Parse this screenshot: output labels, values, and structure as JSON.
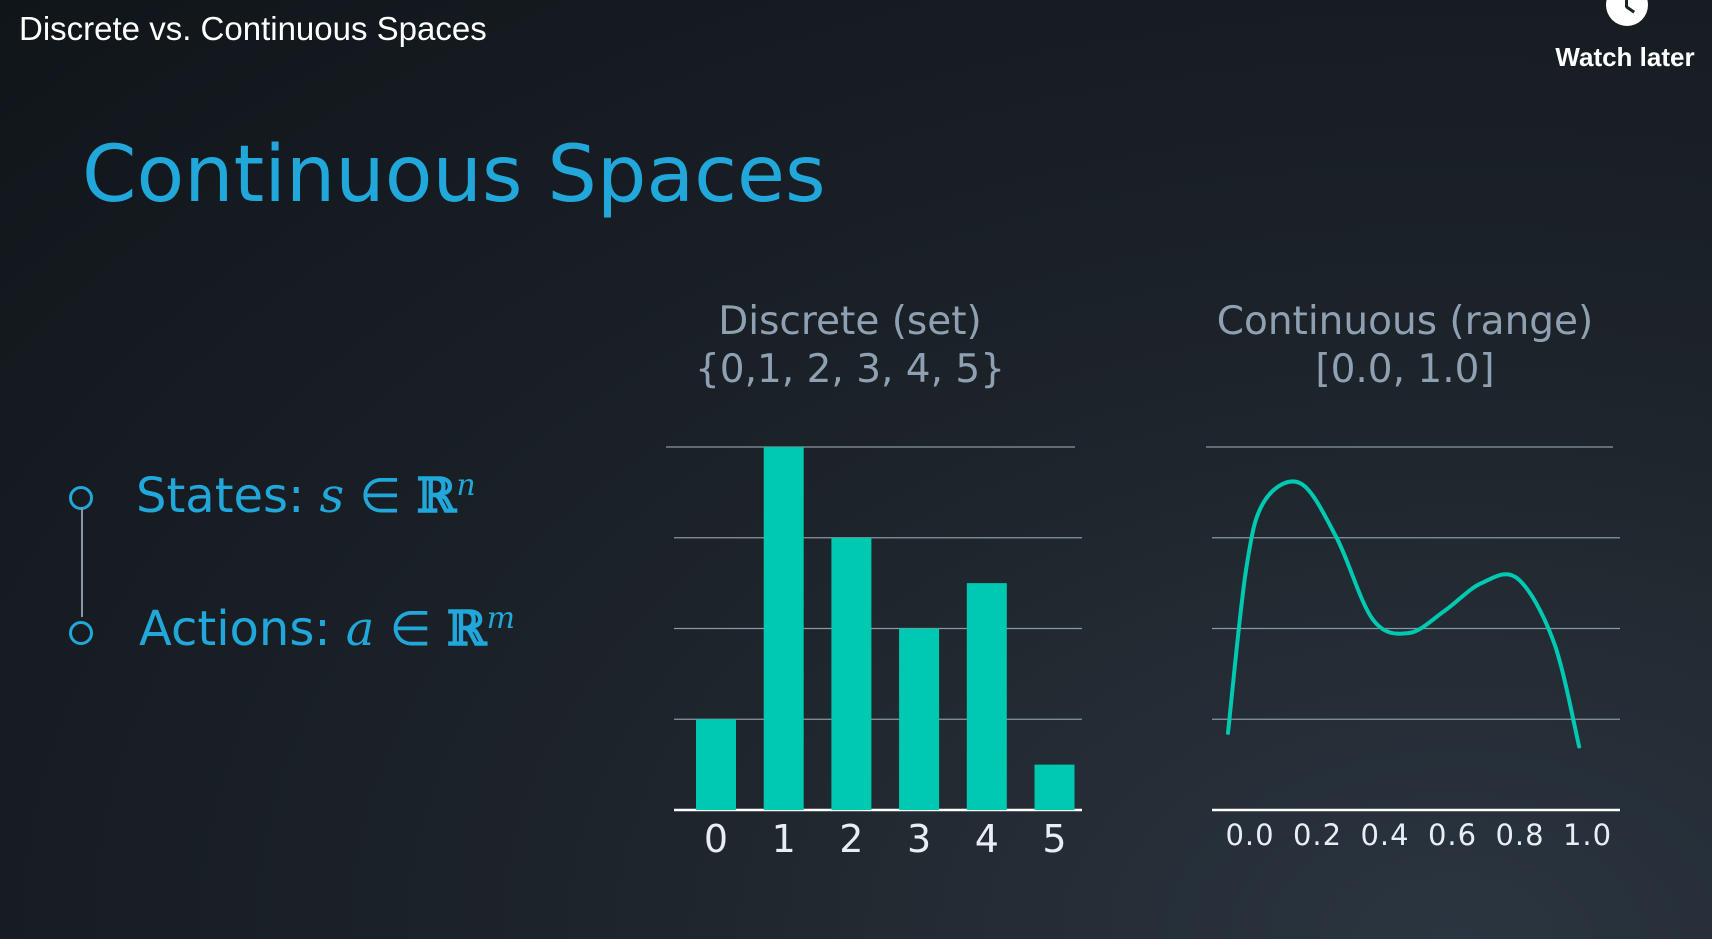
{
  "video_title": "Discrete vs. Continuous Spaces",
  "watch_later": {
    "label": "Watch later",
    "icon": "clock-icon"
  },
  "slide": {
    "title": "Continuous Spaces",
    "bullets": [
      {
        "label": "States:",
        "variable": "s",
        "symbol": "∈",
        "set": "ℝ",
        "exponent": "n"
      },
      {
        "label": "Actions:",
        "variable": "a",
        "symbol": "∈",
        "set": "ℝ",
        "exponent": "m"
      }
    ]
  },
  "colors": {
    "accent": "#21a7da",
    "bar": "#00c9b1",
    "grid": "#8a96a3",
    "header": "#8ea0b2"
  },
  "chart_data": [
    {
      "type": "bar",
      "title": "Discrete (set)",
      "subtitle": "{0,1, 2, 3, 4, 5}",
      "categories": [
        "0",
        "1",
        "2",
        "3",
        "4",
        "5"
      ],
      "values": [
        2,
        8,
        6,
        4,
        5,
        1
      ],
      "ylim": [
        0,
        8
      ],
      "grid": true
    },
    {
      "type": "line",
      "title": "Continuous (range)",
      "subtitle": "[0.0, 1.0]",
      "x": [
        0.0,
        0.05,
        0.1,
        0.2,
        0.3,
        0.4,
        0.5,
        0.6,
        0.7,
        0.8,
        0.9,
        0.97
      ],
      "y": [
        1.7,
        5.3,
        6.8,
        7.2,
        6.0,
        4.2,
        3.9,
        4.4,
        5.0,
        5.1,
        3.7,
        1.4
      ],
      "xticks": [
        "0.0",
        "0.2",
        "0.4",
        "0.6",
        "0.8",
        "1.0"
      ],
      "xlim": [
        0,
        1
      ],
      "ylim": [
        0,
        8
      ],
      "grid": true
    }
  ]
}
